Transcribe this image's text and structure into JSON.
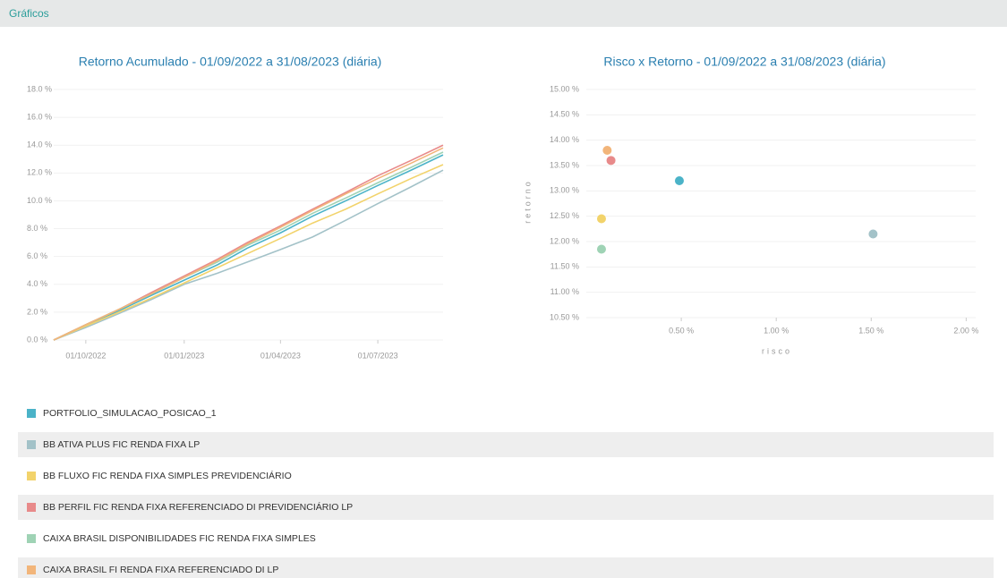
{
  "header": {
    "title": "Gráficos"
  },
  "chart_data": [
    {
      "type": "line",
      "title": "Retorno Acumulado - 01/09/2022 a 31/08/2023 (diária)",
      "x": [
        "01/09/2022",
        "01/10/2022",
        "01/11/2022",
        "01/12/2022",
        "01/01/2023",
        "01/02/2023",
        "01/03/2023",
        "01/04/2023",
        "01/05/2023",
        "01/06/2023",
        "01/07/2023",
        "01/08/2023",
        "31/08/2023"
      ],
      "xlim": [
        "01/09/2022",
        "31/08/2023"
      ],
      "xticks": [
        "01/10/2022",
        "01/01/2023",
        "01/04/2023",
        "01/07/2023"
      ],
      "ylim": [
        0,
        18
      ],
      "yticks": [
        {
          "value": 0,
          "label": "0.0 %"
        },
        {
          "value": 2,
          "label": "2.0 %"
        },
        {
          "value": 4,
          "label": "4.0 %"
        },
        {
          "value": 6,
          "label": "6.0 %"
        },
        {
          "value": 8,
          "label": "8.0 %"
        },
        {
          "value": 10,
          "label": "10.0 %"
        },
        {
          "value": 12,
          "label": "12.0 %"
        },
        {
          "value": 14,
          "label": "14.0 %"
        },
        {
          "value": 16,
          "label": "16.0 %"
        },
        {
          "value": 18,
          "label": "18.0 %"
        }
      ],
      "grid": true,
      "series": [
        {
          "name": "PORTFOLIO_SIMULACAO_POSICAO_1",
          "color": "#4bb3c8",
          "values": [
            0,
            1.0,
            2.1,
            3.2,
            4.3,
            5.4,
            6.6,
            7.7,
            8.9,
            10.0,
            11.1,
            12.2,
            13.3
          ]
        },
        {
          "name": "BB ATIVA PLUS FIC RENDA FIXA LP",
          "color": "#a3c2c8",
          "values": [
            0,
            0.9,
            1.9,
            2.9,
            4.0,
            4.8,
            5.6,
            6.5,
            7.4,
            8.6,
            9.8,
            11.0,
            12.2
          ]
        },
        {
          "name": "BB FLUXO FIC RENDA FIXA SIMPLES PREVIDENCIÁRIO",
          "color": "#f2d36b",
          "values": [
            0,
            1.0,
            2.0,
            3.0,
            4.1,
            5.2,
            6.2,
            7.3,
            8.4,
            9.4,
            10.5,
            11.6,
            12.6
          ]
        },
        {
          "name": "BB PERFIL FIC RENDA FIXA REFERENCIADO DI PREVIDENCIÁRIO LP",
          "color": "#e88a8a",
          "values": [
            0,
            1.1,
            2.2,
            3.4,
            4.6,
            5.8,
            7.0,
            8.2,
            9.4,
            10.6,
            11.8,
            12.9,
            14.0
          ]
        },
        {
          "name": "CAIXA BRASIL DISPONIBILIDADES FIC RENDA FIXA SIMPLES",
          "color": "#9fd3b5",
          "values": [
            0,
            1.1,
            2.2,
            3.3,
            4.5,
            5.6,
            6.8,
            7.9,
            9.1,
            10.2,
            11.3,
            12.4,
            13.5
          ]
        },
        {
          "name": "CAIXA BRASIL FI RENDA FIXA REFERENCIADO DI LP",
          "color": "#f2b57a",
          "values": [
            0,
            1.1,
            2.2,
            3.3,
            4.5,
            5.7,
            6.9,
            8.1,
            9.3,
            10.5,
            11.6,
            12.7,
            13.8
          ]
        }
      ]
    },
    {
      "type": "scatter",
      "title": "Risco x Retorno - 01/09/2022 a 31/08/2023 (diária)",
      "xlabel": "risco",
      "ylabel": "retorno",
      "xlim": [
        0,
        2.05
      ],
      "xticks": [
        {
          "value": 0.5,
          "label": "0.50 %"
        },
        {
          "value": 1,
          "label": "1.00 %"
        },
        {
          "value": 1.5,
          "label": "1.50 %"
        },
        {
          "value": 2,
          "label": "2.00 %"
        }
      ],
      "ylim": [
        10.5,
        15
      ],
      "yticks": [
        {
          "value": 10.5,
          "label": "10.50 %"
        },
        {
          "value": 11,
          "label": "11.00 %"
        },
        {
          "value": 11.5,
          "label": "11.50 %"
        },
        {
          "value": 12,
          "label": "12.00 %"
        },
        {
          "value": 12.5,
          "label": "12.50 %"
        },
        {
          "value": 13,
          "label": "13.00 %"
        },
        {
          "value": 13.5,
          "label": "13.50 %"
        },
        {
          "value": 14,
          "label": "14.00 %"
        },
        {
          "value": 14.5,
          "label": "14.50 %"
        },
        {
          "value": 15,
          "label": "15.00 %"
        }
      ],
      "grid": true,
      "series": [
        {
          "color": "#4bb3c8",
          "x": [
            0.49
          ],
          "values": [
            13.2
          ]
        },
        {
          "color": "#a3c2c8",
          "x": [
            1.51
          ],
          "values": [
            12.15
          ]
        },
        {
          "color": "#f2d36b",
          "x": [
            0.08
          ],
          "values": [
            12.45
          ]
        },
        {
          "color": "#e88a8a",
          "x": [
            0.13
          ],
          "values": [
            13.6
          ]
        },
        {
          "color": "#9fd3b5",
          "x": [
            0.08
          ],
          "values": [
            11.85
          ]
        },
        {
          "color": "#f2b57a",
          "x": [
            0.11
          ],
          "values": [
            13.8
          ]
        }
      ]
    }
  ]
}
